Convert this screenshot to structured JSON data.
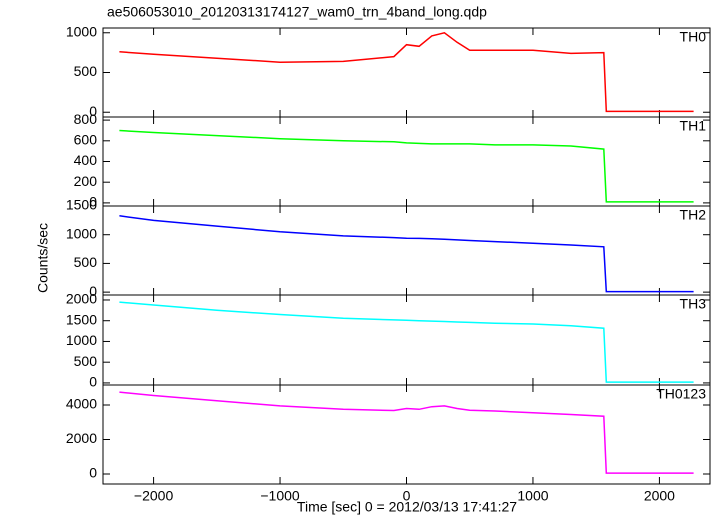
{
  "chart_data": [
    {
      "type": "line",
      "title": "ae506053010_20120313174127_wam0_trn_4band_long.qdp",
      "x": [
        -2270,
        -2000,
        -1500,
        -1000,
        -500,
        -100,
        0,
        100,
        200,
        300,
        400,
        500,
        700,
        1000,
        1300,
        1560,
        1580,
        2270
      ],
      "series": [
        {
          "name": "TH0",
          "color": "#ff0000",
          "values": [
            760,
            730,
            680,
            630,
            640,
            700,
            850,
            830,
            960,
            1000,
            880,
            780,
            780,
            780,
            740,
            750,
            10,
            10
          ]
        }
      ],
      "xlim": [
        -2400,
        2400
      ],
      "ylim": [
        -60,
        1060
      ],
      "yticks": [
        0,
        500,
        1000
      ]
    },
    {
      "type": "line",
      "ylabel": "Counts/sec",
      "x": [
        -2270,
        -2000,
        -1500,
        -1000,
        -500,
        -100,
        0,
        100,
        200,
        300,
        400,
        500,
        700,
        1000,
        1300,
        1560,
        1580,
        2270
      ],
      "series": [
        {
          "name": "TH1",
          "color": "#00ff00",
          "values": [
            700,
            680,
            650,
            620,
            600,
            590,
            580,
            575,
            570,
            570,
            570,
            570,
            560,
            560,
            550,
            520,
            10,
            10
          ]
        }
      ],
      "xlim": [
        -2400,
        2400
      ],
      "ylim": [
        -30,
        830
      ],
      "yticks": [
        0,
        200,
        400,
        600,
        800
      ]
    },
    {
      "type": "line",
      "x": [
        -2270,
        -2000,
        -1500,
        -1000,
        -500,
        -100,
        0,
        100,
        200,
        300,
        400,
        500,
        700,
        1000,
        1300,
        1560,
        1580,
        2270
      ],
      "series": [
        {
          "name": "TH2",
          "color": "#0000ff",
          "values": [
            1330,
            1250,
            1150,
            1050,
            980,
            950,
            940,
            935,
            930,
            920,
            910,
            900,
            880,
            850,
            820,
            790,
            10,
            10
          ]
        }
      ],
      "xlim": [
        -2400,
        2400
      ],
      "ylim": [
        -50,
        1500
      ],
      "yticks": [
        0,
        500,
        1000,
        1500
      ]
    },
    {
      "type": "line",
      "x": [
        -2270,
        -2000,
        -1500,
        -1000,
        -500,
        -100,
        0,
        100,
        200,
        300,
        400,
        500,
        700,
        1000,
        1300,
        1560,
        1580,
        2270
      ],
      "series": [
        {
          "name": "TH3",
          "color": "#00ffff",
          "values": [
            1950,
            1880,
            1750,
            1650,
            1560,
            1520,
            1510,
            1500,
            1490,
            1480,
            1470,
            1460,
            1440,
            1420,
            1380,
            1320,
            20,
            20
          ]
        }
      ],
      "xlim": [
        -2400,
        2400
      ],
      "ylim": [
        -50,
        2120
      ],
      "yticks": [
        0,
        500,
        1000,
        1500,
        2000
      ]
    },
    {
      "type": "line",
      "xlabel": "Time [sec] 0 = 2012/03/13 17:41:27",
      "x": [
        -2270,
        -2000,
        -1500,
        -1000,
        -500,
        -100,
        0,
        100,
        200,
        300,
        400,
        500,
        700,
        1000,
        1300,
        1560,
        1580,
        2270
      ],
      "series": [
        {
          "name": "TH0123",
          "color": "#ff00ff",
          "values": [
            4750,
            4550,
            4250,
            3950,
            3750,
            3680,
            3800,
            3750,
            3900,
            3950,
            3800,
            3700,
            3650,
            3550,
            3450,
            3350,
            50,
            50
          ]
        }
      ],
      "xlim": [
        -2400,
        2400
      ],
      "ylim": [
        -580,
        5160
      ],
      "yticks": [
        0,
        2000,
        4000
      ],
      "xticks": [
        {
          "value": -2000,
          "label": "−2000"
        },
        {
          "value": -1000,
          "label": "−1000"
        },
        0,
        1000,
        2000
      ]
    }
  ]
}
